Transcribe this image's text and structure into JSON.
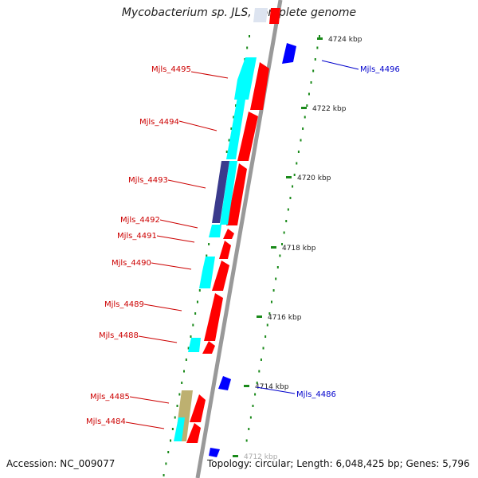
{
  "title": "Mycobacterium sp. JLS, complete genome",
  "accession": "Accession: NC_009077",
  "topology": "Topology: circular; Length: 6,048,425 bp; Genes: 5,796",
  "colors": {
    "forward_gene": "#ff0000",
    "reverse_gene": "#00ffff",
    "reverse_gene_alt": "#3a3a8c",
    "reverse_gene_tan": "#bdb070",
    "other_gene": "#0000ff",
    "backbone": "#999999",
    "tick": "#1a8a1a",
    "label_forward": "#cc0000",
    "label_other": "#0000cc"
  },
  "ticks": [
    "4724 kbp",
    "4722 kbp",
    "4720 kbp",
    "4718 kbp",
    "4716 kbp",
    "4714 kbp",
    "4712 kbp"
  ],
  "labels": [
    "Mjls_4495",
    "Mjls_4494",
    "Mjls_4493",
    "Mjls_4492",
    "Mjls_4491",
    "Mjls_4490",
    "Mjls_4489",
    "Mjls_4488",
    "Mjls_4485",
    "Mjls_4484",
    "Mjls_4496",
    "Mjls_4486"
  ]
}
